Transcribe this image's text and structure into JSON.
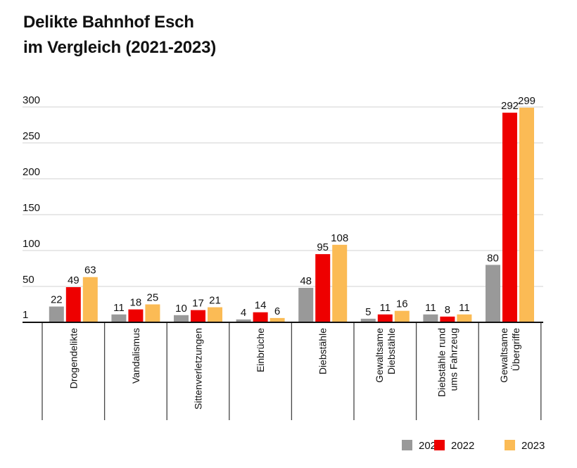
{
  "chart_data": {
    "type": "bar",
    "title": [
      "Delikte Bahnhof Esch",
      "im Vergleich (2021-2023)"
    ],
    "xlabel": "",
    "ylabel": "",
    "ylim": [
      0,
      300
    ],
    "yticks": [
      1,
      50,
      100,
      150,
      200,
      250,
      300
    ],
    "grid": true,
    "legend_position": "bottom-right",
    "categories": [
      [
        "Drogendelikte"
      ],
      [
        "Vandalismus"
      ],
      [
        "Sittenverletzungen"
      ],
      [
        "Einbrüche"
      ],
      [
        "Diebstähle"
      ],
      [
        "Gewaltsame",
        "Diebstähle"
      ],
      [
        "Diebstähle rund",
        "ums Fahrzeug"
      ],
      [
        "Gewaltsame",
        "Übergriffe"
      ]
    ],
    "series": [
      {
        "name": "2021",
        "color": "#999999",
        "values": [
          22,
          11,
          10,
          4,
          48,
          5,
          11,
          80
        ]
      },
      {
        "name": "2022",
        "color": "#ee0000",
        "values": [
          49,
          18,
          17,
          14,
          95,
          11,
          8,
          292
        ]
      },
      {
        "name": "2023",
        "color": "#fbbb55",
        "values": [
          63,
          25,
          21,
          6,
          108,
          16,
          11,
          299
        ]
      }
    ]
  }
}
